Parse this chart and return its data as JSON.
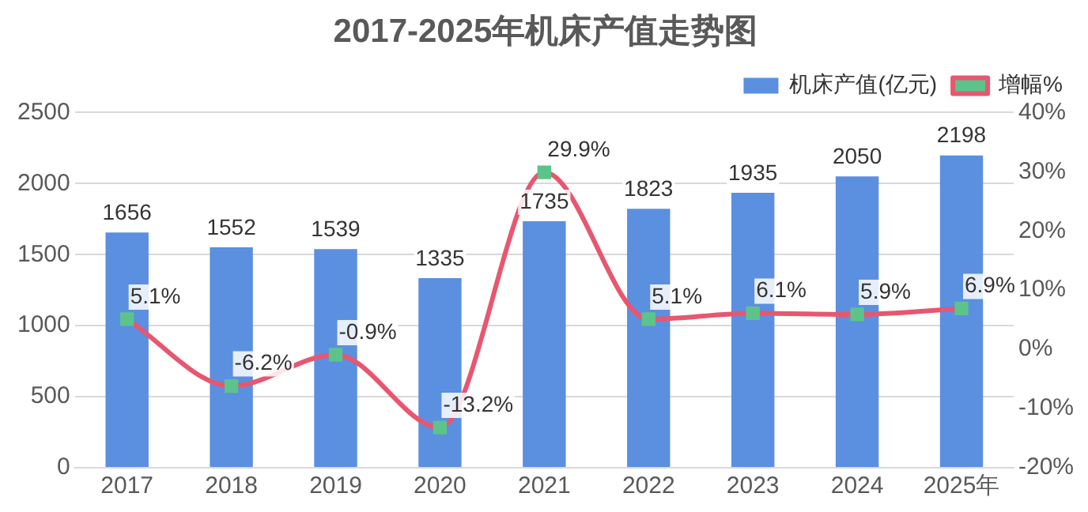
{
  "chart_data": {
    "type": "bar",
    "title": "2017-2025年机床产值走势图",
    "categories": [
      "2017",
      "2018",
      "2019",
      "2020",
      "2021",
      "2022",
      "2023",
      "2024",
      "2025年"
    ],
    "series": [
      {
        "name": "机床产值(亿元)",
        "color": "#5b8fe0",
        "values": [
          1656,
          1552,
          1539,
          1335,
          1735,
          1823,
          1935,
          2050,
          2198
        ],
        "value_labels": [
          "1656",
          "1552",
          "1539",
          "1335",
          "1735",
          "1823",
          "1935",
          "2050",
          "2198"
        ]
      },
      {
        "name": "增幅%",
        "type": "line",
        "axis": "y2",
        "color": "#e8566f",
        "colors": [
          "#5cc48a",
          "#5cc48a",
          "#5cc48a",
          "#5cc48a",
          "#5cc48a",
          "#5cc48a",
          "#5cc48a",
          "#5cc48a",
          "#5cc48a"
        ],
        "values": [
          5.1,
          -6.2,
          -0.9,
          -13.2,
          29.9,
          5.1,
          6.1,
          5.9,
          6.9
        ],
        "value_labels": [
          "5.1%",
          "-6.2%",
          "-0.9%",
          "-13.2%",
          "29.9%",
          "5.1%",
          "6.1%",
          "5.9%",
          "6.9%"
        ]
      }
    ],
    "ylim": [
      0,
      2500
    ],
    "yticks": [
      0,
      500,
      1000,
      1500,
      2000,
      2500
    ],
    "y2lim": [
      -20,
      40
    ],
    "y2ticks": [
      {
        "value": -20,
        "label": "-20%"
      },
      {
        "value": -10,
        "label": "-10%"
      },
      {
        "value": 0,
        "label": "0%"
      },
      {
        "value": 10,
        "label": "10%"
      },
      {
        "value": 20,
        "label": "20%"
      },
      {
        "value": 30,
        "label": "30%"
      },
      {
        "value": 40,
        "label": "40%"
      }
    ],
    "grid": "y",
    "legend": "top right",
    "marker": "square"
  }
}
